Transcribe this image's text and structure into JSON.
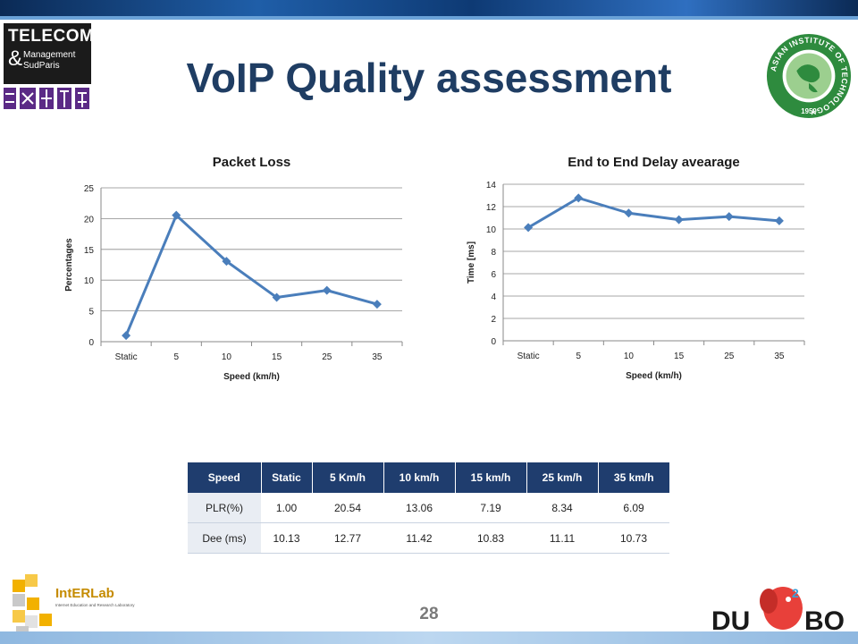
{
  "slide": {
    "title": "VoIP Quality assessment",
    "page_number": "28"
  },
  "logos": {
    "telecom": {
      "line1": "TELECOM",
      "amp": "&",
      "line2": "Management",
      "line3": "SudParis"
    },
    "ait": {
      "text": "ASIAN INSTITUTE OF TECHNOLOGY",
      "year": "1959"
    },
    "interlab": {
      "name": "IntERLab",
      "subtitle": "Internet Education and Research Laboratory"
    },
    "dumbo": {
      "name": "DUMBO",
      "digit": "2"
    }
  },
  "chart_data": [
    {
      "type": "line",
      "title": "Packet Loss",
      "xlabel": "Speed (km/h)",
      "ylabel": "Percentages",
      "categories": [
        "Static",
        "5",
        "10",
        "15",
        "25",
        "35"
      ],
      "values": [
        1.0,
        20.54,
        13.06,
        7.19,
        8.34,
        6.09
      ],
      "ylim": [
        0,
        25
      ],
      "yticks": [
        0,
        5,
        10,
        15,
        20,
        25
      ],
      "grid": true,
      "color": "#4a7ebb"
    },
    {
      "type": "line",
      "title": "End to End Delay avearage",
      "xlabel": "Speed (km/h)",
      "ylabel": "Time [ms]",
      "categories": [
        "Static",
        "5",
        "10",
        "15",
        "25",
        "35"
      ],
      "values": [
        10.13,
        12.77,
        11.42,
        10.83,
        11.11,
        10.73
      ],
      "ylim": [
        0,
        14
      ],
      "yticks": [
        0,
        2,
        4,
        6,
        8,
        10,
        12,
        14
      ],
      "grid": true,
      "color": "#4a7ebb"
    }
  ],
  "table": {
    "headers": [
      "Speed",
      "Static",
      "5 Km/h",
      "10 km/h",
      "15 km/h",
      "25 km/h",
      "35 km/h"
    ],
    "rows": [
      [
        "PLR(%)",
        "1.00",
        "20.54",
        "13.06",
        "7.19",
        "8.34",
        "6.09"
      ],
      [
        "Dee (ms)",
        "10.13",
        "12.77",
        "11.42",
        "10.83",
        "11.11",
        "10.73"
      ]
    ]
  },
  "colors": {
    "title": "#1f3d63",
    "table_header": "#1f3d6e",
    "series": "#4a7ebb"
  }
}
